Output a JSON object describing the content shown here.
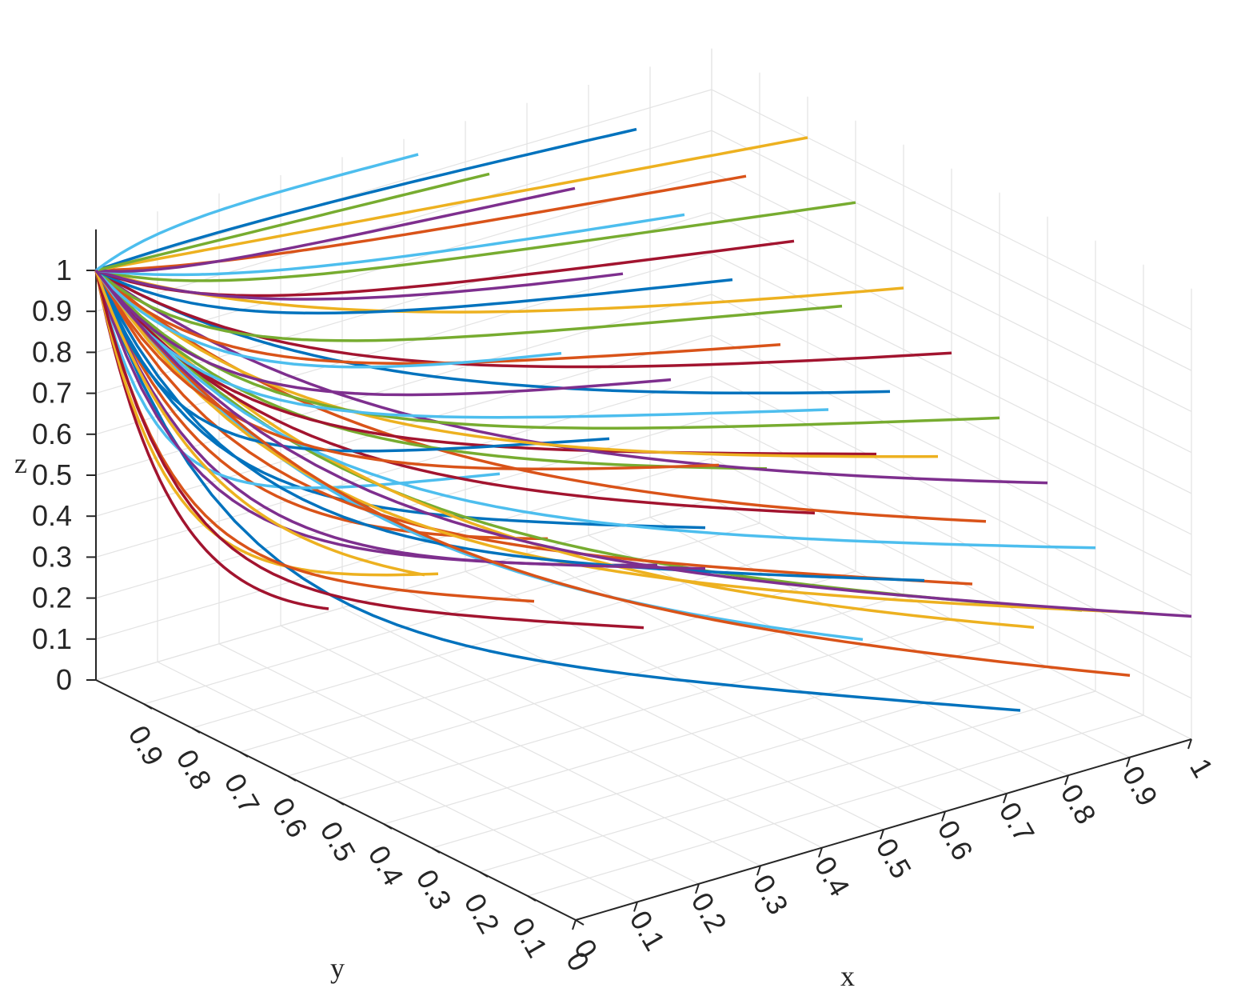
{
  "chart_data": {
    "type": "line",
    "view": "3d",
    "title": "",
    "xlabel": "x",
    "ylabel": "y",
    "zlabel": "z",
    "xlim": [
      0,
      1
    ],
    "ylim": [
      0,
      1
    ],
    "zlim": [
      0,
      1.1
    ],
    "grid": true,
    "x_ticks": [
      "0",
      "0.1",
      "0.2",
      "0.3",
      "0.4",
      "0.5",
      "0.6",
      "0.7",
      "0.8",
      "0.9",
      "1"
    ],
    "y_ticks": [
      "0",
      "0.1",
      "0.2",
      "0.3",
      "0.4",
      "0.5",
      "0.6",
      "0.7",
      "0.8",
      "0.9"
    ],
    "z_ticks": [
      "0",
      "0.1",
      "0.2",
      "0.3",
      "0.4",
      "0.5",
      "0.6",
      "0.7",
      "0.8",
      "0.9",
      "1"
    ],
    "colors": [
      "#0072BD",
      "#D95319",
      "#EDB120",
      "#7E2F8E",
      "#77AC30",
      "#4DBEEE",
      "#A2142F"
    ],
    "series_start": {
      "x": 0,
      "y": 1,
      "z": 1
    },
    "series": [
      {
        "end": [
          0.3,
          0.9,
          0.1
        ],
        "color": "#A2142F"
      },
      {
        "end": [
          0.5,
          0.7,
          0.3
        ],
        "color": "#D95319"
      },
      {
        "end": [
          0.4,
          0.8,
          0.2
        ],
        "color": "#EDB120"
      },
      {
        "end": [
          0.6,
          0.5,
          0.4
        ],
        "color": "#0072BD"
      },
      {
        "end": [
          0.8,
          0.1,
          0.1
        ],
        "color": "#0072BD"
      },
      {
        "end": [
          0.7,
          0.3,
          0.2
        ],
        "color": "#4DBEEE"
      },
      {
        "end": [
          0.9,
          0.1,
          0.3
        ],
        "color": "#77AC30"
      },
      {
        "end": [
          0.6,
          0.6,
          0.25
        ],
        "color": "#7E2F8E"
      },
      {
        "end": [
          0.8,
          0.2,
          0.35
        ],
        "color": "#D95319"
      },
      {
        "end": [
          0.5,
          0.8,
          0.4
        ],
        "color": "#4DBEEE"
      },
      {
        "end": [
          0.9,
          0.2,
          0.2
        ],
        "color": "#EDB120"
      },
      {
        "end": [
          0.7,
          0.4,
          0.45
        ],
        "color": "#A2142F"
      },
      {
        "end": [
          1.0,
          0.1,
          0.25
        ],
        "color": "#EDB120"
      },
      {
        "end": [
          0.8,
          0.3,
          0.3
        ],
        "color": "#0072BD"
      },
      {
        "end": [
          0.6,
          0.5,
          0.3
        ],
        "color": "#7E2F8E"
      },
      {
        "end": [
          0.9,
          0.3,
          0.4
        ],
        "color": "#D95319"
      },
      {
        "end": [
          0.7,
          0.5,
          0.5
        ],
        "color": "#77AC30"
      },
      {
        "end": [
          1.0,
          0.2,
          0.35
        ],
        "color": "#4DBEEE"
      },
      {
        "end": [
          0.8,
          0.4,
          0.55
        ],
        "color": "#A2142F"
      },
      {
        "end": [
          0.6,
          0.7,
          0.5
        ],
        "color": "#0072BD"
      },
      {
        "end": [
          1.0,
          0.3,
          0.45
        ],
        "color": "#7E2F8E"
      },
      {
        "end": [
          0.9,
          0.4,
          0.5
        ],
        "color": "#EDB120"
      },
      {
        "end": [
          0.7,
          0.6,
          0.45
        ],
        "color": "#D95319"
      },
      {
        "end": [
          1.0,
          0.4,
          0.55
        ],
        "color": "#77AC30"
      },
      {
        "end": [
          0.8,
          0.5,
          0.6
        ],
        "color": "#4DBEEE"
      },
      {
        "end": [
          0.9,
          0.5,
          0.6
        ],
        "color": "#0072BD"
      },
      {
        "end": [
          1.0,
          0.5,
          0.65
        ],
        "color": "#A2142F"
      },
      {
        "end": [
          0.7,
          0.7,
          0.6
        ],
        "color": "#7E2F8E"
      },
      {
        "end": [
          0.8,
          0.6,
          0.7
        ],
        "color": "#D95319"
      },
      {
        "end": [
          0.9,
          0.6,
          0.75
        ],
        "color": "#77AC30"
      },
      {
        "end": [
          1.0,
          0.6,
          0.75
        ],
        "color": "#EDB120"
      },
      {
        "end": [
          0.6,
          0.8,
          0.65
        ],
        "color": "#4DBEEE"
      },
      {
        "end": [
          0.8,
          0.7,
          0.8
        ],
        "color": "#0072BD"
      },
      {
        "end": [
          0.9,
          0.7,
          0.85
        ],
        "color": "#A2142F"
      },
      {
        "end": [
          1.0,
          0.7,
          0.9
        ],
        "color": "#77AC30"
      },
      {
        "end": [
          0.7,
          0.8,
          0.8
        ],
        "color": "#7E2F8E"
      },
      {
        "end": [
          0.8,
          0.8,
          0.9
        ],
        "color": "#4DBEEE"
      },
      {
        "end": [
          0.9,
          0.8,
          0.95
        ],
        "color": "#D95319"
      },
      {
        "end": [
          1.0,
          0.8,
          1.0
        ],
        "color": "#EDB120"
      },
      {
        "end": [
          0.7,
          0.9,
          0.95
        ],
        "color": "#7E2F8E"
      },
      {
        "end": [
          0.8,
          0.9,
          1.05
        ],
        "color": "#0072BD"
      },
      {
        "end": [
          0.6,
          0.95,
          1.0
        ],
        "color": "#77AC30"
      },
      {
        "end": [
          0.5,
          0.97,
          1.08
        ],
        "color": "#4DBEEE"
      },
      {
        "end": [
          0.4,
          0.6,
          0.25
        ],
        "color": "#D95319"
      },
      {
        "end": [
          0.5,
          0.5,
          0.2
        ],
        "color": "#A2142F"
      },
      {
        "end": [
          0.3,
          0.7,
          0.3
        ],
        "color": "#EDB120"
      },
      {
        "end": [
          0.9,
          0.0,
          0.2
        ],
        "color": "#D95319"
      },
      {
        "end": [
          1.0,
          0.0,
          0.3
        ],
        "color": "#7E2F8E"
      }
    ]
  }
}
